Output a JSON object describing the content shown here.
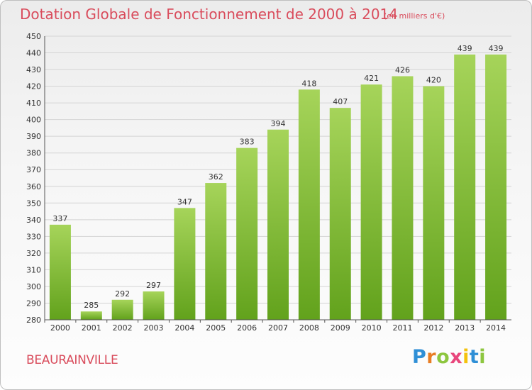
{
  "chart_data": {
    "type": "bar",
    "title": "Dotation Globale de Fonctionnement de 2000 à 2014",
    "subtitle": "(en milliers d'€)",
    "categories": [
      "2000",
      "2001",
      "2002",
      "2003",
      "2004",
      "2005",
      "2006",
      "2007",
      "2008",
      "2009",
      "2010",
      "2011",
      "2012",
      "2013",
      "2014"
    ],
    "values": [
      337,
      285,
      292,
      297,
      347,
      362,
      383,
      394,
      418,
      407,
      421,
      426,
      420,
      439,
      439
    ],
    "ylim": [
      280,
      450
    ],
    "yticks": [
      280,
      290,
      300,
      310,
      320,
      330,
      340,
      350,
      360,
      370,
      380,
      390,
      400,
      410,
      420,
      430,
      440,
      450
    ],
    "grid": true,
    "legend": "none",
    "colors": {
      "bar_light": "#a6d45a",
      "bar_dark": "#62a21c",
      "title": "#d94c5c",
      "grid": "#d4d4d4"
    }
  },
  "commune": "BEAURAINVILLE",
  "logo": {
    "letters": [
      "P",
      "r",
      "o",
      "x",
      "i",
      "t",
      "i"
    ],
    "colors": [
      "#2f8fd6",
      "#e87d24",
      "#8dc63f",
      "#e8467c",
      "#f4c20d",
      "#2f8fd6",
      "#8dc63f"
    ]
  }
}
